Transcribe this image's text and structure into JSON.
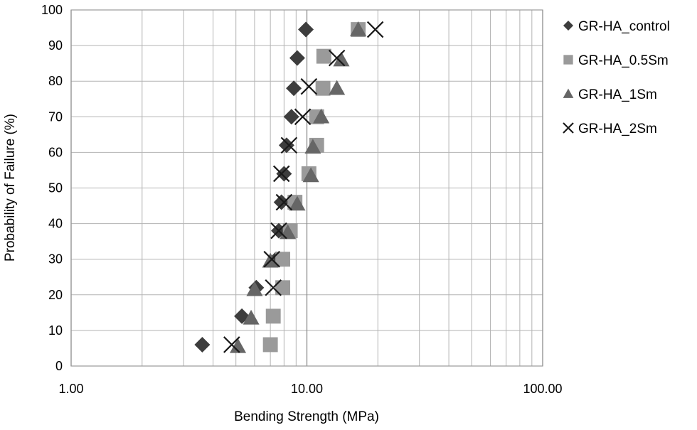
{
  "chart_data": {
    "type": "scatter",
    "xlabel": "Bending Strength (MPa)",
    "ylabel": "Probability of Failure (%)",
    "x_scale": "log",
    "xlim": [
      1,
      100
    ],
    "ylim": [
      0,
      100
    ],
    "x_ticks": [
      "1.00",
      "10.00",
      "100.00"
    ],
    "y_ticks": [
      "0",
      "10",
      "20",
      "30",
      "40",
      "50",
      "60",
      "70",
      "80",
      "90",
      "100"
    ],
    "grid": true,
    "legend_position": "right",
    "series": [
      {
        "name": "GR-HA_control",
        "marker": "diamond",
        "color": "#3d3d3d",
        "points": [
          {
            "x": 3.6,
            "y": 6
          },
          {
            "x": 5.3,
            "y": 14
          },
          {
            "x": 6.1,
            "y": 22
          },
          {
            "x": 7.4,
            "y": 30
          },
          {
            "x": 7.6,
            "y": 38
          },
          {
            "x": 7.8,
            "y": 46
          },
          {
            "x": 8.0,
            "y": 54
          },
          {
            "x": 8.2,
            "y": 62
          },
          {
            "x": 8.6,
            "y": 70
          },
          {
            "x": 8.8,
            "y": 78
          },
          {
            "x": 9.1,
            "y": 86.5
          },
          {
            "x": 9.9,
            "y": 94.5
          }
        ]
      },
      {
        "name": "GR-HA_0.5Sm",
        "marker": "square",
        "color": "#9a9a9a",
        "points": [
          {
            "x": 7.0,
            "y": 6
          },
          {
            "x": 7.2,
            "y": 14
          },
          {
            "x": 7.9,
            "y": 22
          },
          {
            "x": 7.9,
            "y": 30
          },
          {
            "x": 8.5,
            "y": 38
          },
          {
            "x": 8.9,
            "y": 46
          },
          {
            "x": 10.2,
            "y": 54
          },
          {
            "x": 11.0,
            "y": 62
          },
          {
            "x": 11.0,
            "y": 70
          },
          {
            "x": 11.7,
            "y": 78
          },
          {
            "x": 11.8,
            "y": 87
          },
          {
            "x": 16.5,
            "y": 94.5
          }
        ]
      },
      {
        "name": "GR-HA_1Sm",
        "marker": "triangle",
        "color": "#666666",
        "points": [
          {
            "x": 5.1,
            "y": 5.5
          },
          {
            "x": 5.8,
            "y": 13.5
          },
          {
            "x": 6.0,
            "y": 21.5
          },
          {
            "x": 7.0,
            "y": 29.5
          },
          {
            "x": 8.3,
            "y": 37.5
          },
          {
            "x": 9.1,
            "y": 45.5
          },
          {
            "x": 10.4,
            "y": 53.5
          },
          {
            "x": 10.6,
            "y": 61.5
          },
          {
            "x": 11.5,
            "y": 70
          },
          {
            "x": 13.4,
            "y": 78
          },
          {
            "x": 14.0,
            "y": 86
          },
          {
            "x": 16.5,
            "y": 94.5
          }
        ]
      },
      {
        "name": "GR-HA_2Sm",
        "marker": "x",
        "color": "#1a1a1a",
        "points": [
          {
            "x": 4.8,
            "y": 6
          },
          {
            "x": 7.2,
            "y": 22
          },
          {
            "x": 7.1,
            "y": 30
          },
          {
            "x": 7.6,
            "y": 38
          },
          {
            "x": 8.0,
            "y": 46
          },
          {
            "x": 7.8,
            "y": 54
          },
          {
            "x": 8.4,
            "y": 62
          },
          {
            "x": 9.6,
            "y": 70
          },
          {
            "x": 10.2,
            "y": 78.5
          },
          {
            "x": 13.4,
            "y": 86.5
          },
          {
            "x": 19.5,
            "y": 94.5
          }
        ]
      }
    ]
  }
}
